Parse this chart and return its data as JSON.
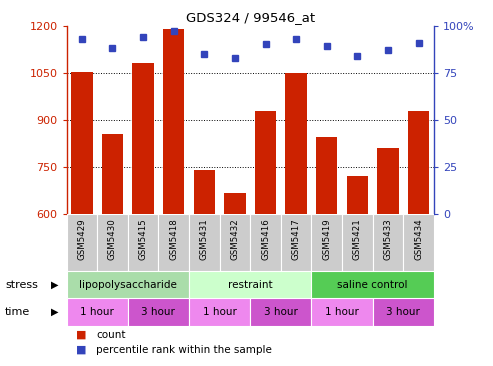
{
  "title": "GDS324 / 99546_at",
  "samples": [
    "GSM5429",
    "GSM5430",
    "GSM5415",
    "GSM5418",
    "GSM5431",
    "GSM5432",
    "GSM5416",
    "GSM5417",
    "GSM5419",
    "GSM5421",
    "GSM5433",
    "GSM5434"
  ],
  "counts": [
    1052,
    855,
    1080,
    1190,
    740,
    668,
    928,
    1048,
    845,
    722,
    812,
    928
  ],
  "percentiles": [
    93,
    88,
    94,
    97,
    85,
    83,
    90,
    93,
    89,
    84,
    87,
    91
  ],
  "ylim_left": [
    600,
    1200
  ],
  "ylim_right": [
    0,
    100
  ],
  "yticks_left": [
    600,
    750,
    900,
    1050,
    1200
  ],
  "yticks_right": [
    0,
    25,
    50,
    75,
    100
  ],
  "bar_color": "#cc2200",
  "dot_color": "#3344bb",
  "left_tick_color": "#cc2200",
  "right_tick_color": "#3344bb",
  "stress_groups": [
    {
      "label": "lipopolysaccharide",
      "start": 0,
      "end": 4,
      "color": "#aaddaa"
    },
    {
      "label": "restraint",
      "start": 4,
      "end": 8,
      "color": "#ccffcc"
    },
    {
      "label": "saline control",
      "start": 8,
      "end": 12,
      "color": "#55cc55"
    }
  ],
  "time_groups": [
    {
      "label": "1 hour",
      "start": 0,
      "end": 2,
      "color": "#ee88ee"
    },
    {
      "label": "3 hour",
      "start": 2,
      "end": 4,
      "color": "#cc55cc"
    },
    {
      "label": "1 hour",
      "start": 4,
      "end": 6,
      "color": "#ee88ee"
    },
    {
      "label": "3 hour",
      "start": 6,
      "end": 8,
      "color": "#cc55cc"
    },
    {
      "label": "1 hour",
      "start": 8,
      "end": 10,
      "color": "#ee88ee"
    },
    {
      "label": "3 hour",
      "start": 10,
      "end": 12,
      "color": "#cc55cc"
    }
  ],
  "legend_count_color": "#cc2200",
  "legend_dot_color": "#3344bb",
  "background_color": "#ffffff",
  "xticklabel_bg": "#cccccc",
  "bar_baseline": 600
}
